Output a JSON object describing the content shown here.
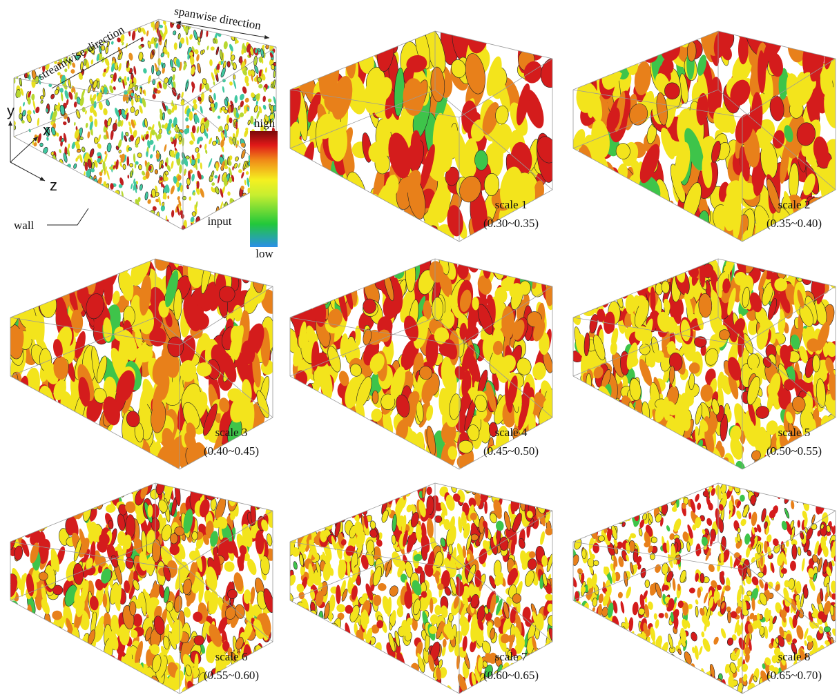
{
  "figure": {
    "annotations": {
      "streamwise": "streamwise direction",
      "spanwise": "spanwise direction",
      "axis_y": "y",
      "axis_x": "x",
      "axis_z": "z",
      "wall": "wall",
      "input": "input"
    },
    "colorbar": {
      "high": "high",
      "low": "low"
    },
    "panels": [
      {
        "label": "scale 1",
        "range": "(0.30~0.35)"
      },
      {
        "label": "scale 2",
        "range": "(0.35~0.40)"
      },
      {
        "label": "scale 3",
        "range": "(0.40~0.45)"
      },
      {
        "label": "scale 4",
        "range": "(0.45~0.50)"
      },
      {
        "label": "scale 5",
        "range": "(0.50~0.55)"
      },
      {
        "label": "scale 6",
        "range": "(0.55~0.60)"
      },
      {
        "label": "scale 7",
        "range": "(0.60~0.65)"
      },
      {
        "label": "scale 8",
        "range": "(0.65~0.70)"
      }
    ]
  }
}
